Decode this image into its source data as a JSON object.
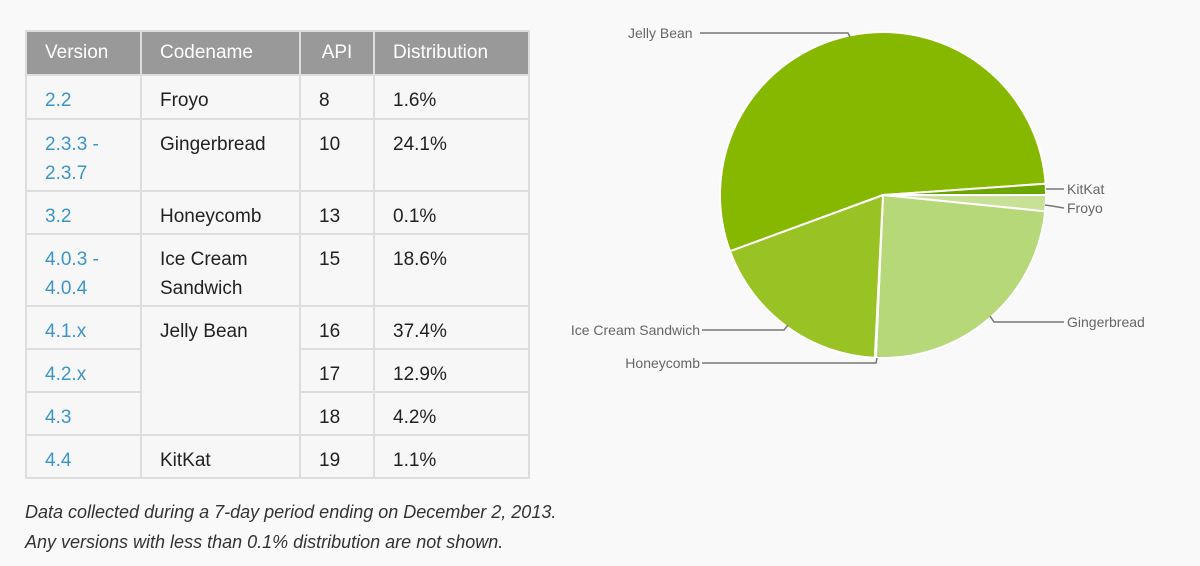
{
  "table": {
    "headers": [
      "Version",
      "Codename",
      "API",
      "Distribution"
    ],
    "rows": [
      {
        "version": "2.2",
        "codename": "Froyo",
        "api": "8",
        "dist": "1.6%"
      },
      {
        "version1": "2.3.3 -",
        "version2": "2.3.7",
        "codename": "Gingerbread",
        "api": "10",
        "dist": "24.1%"
      },
      {
        "version": "3.2",
        "codename": "Honeycomb",
        "api": "13",
        "dist": "0.1%"
      },
      {
        "version1": "4.0.3 -",
        "version2": "4.0.4",
        "codename1": "Ice Cream",
        "codename2": "Sandwich",
        "api": "15",
        "dist": "18.6%"
      },
      {
        "version": "4.1.x",
        "codename": "Jelly Bean",
        "api": "16",
        "dist": "37.4%"
      },
      {
        "version": "4.2.x",
        "api": "17",
        "dist": "12.9%"
      },
      {
        "version": "4.3",
        "api": "18",
        "dist": "4.2%"
      },
      {
        "version": "4.4",
        "codename": "KitKat",
        "api": "19",
        "dist": "1.1%"
      }
    ],
    "colors": {
      "header_bg": "#999999",
      "link": "#3a96c8"
    }
  },
  "footnote": {
    "line1": "Data collected during a 7-day period ending on December 2, 2013.",
    "line2": "Any versions with less than 0.1% distribution are not shown."
  },
  "chart_data": {
    "type": "pie",
    "slices": [
      {
        "label": "Froyo",
        "value": 1.6,
        "color": "#c8e196"
      },
      {
        "label": "Gingerbread",
        "value": 24.1,
        "color": "#b6d878"
      },
      {
        "label": "Honeycomb",
        "value": 0.1,
        "color": "#a9cc4c"
      },
      {
        "label": "Ice Cream Sandwich",
        "value": 18.6,
        "color": "#99c225"
      },
      {
        "label": "Jelly Bean",
        "value": 54.5,
        "color": "#86b800"
      },
      {
        "label": "KitKat",
        "value": 1.1,
        "color": "#6aa800"
      }
    ]
  }
}
